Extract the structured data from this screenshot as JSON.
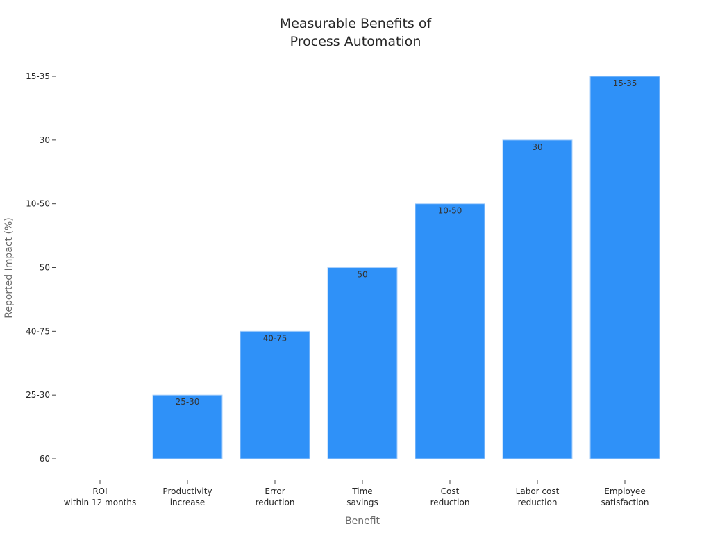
{
  "chart_data": {
    "type": "bar",
    "title": [
      "Measurable Benefits of",
      "Process Automation"
    ],
    "xlabel": "Benefit",
    "ylabel": "Reported Impact (%)",
    "y_axis_kind": "categorical",
    "y_ticks": [
      "60",
      "25-30",
      "40-75",
      "50",
      "10-50",
      "30",
      "15-35"
    ],
    "categories": [
      [
        "ROI",
        "within 12 months"
      ],
      [
        "Productivity",
        "increase"
      ],
      [
        "Error",
        "reduction"
      ],
      [
        "Time",
        "savings"
      ],
      [
        "Cost",
        "reduction"
      ],
      [
        "Labor cost",
        "reduction"
      ],
      [
        "Employee",
        "satisfaction"
      ]
    ],
    "values": [
      "60",
      "25-30",
      "40-75",
      "50",
      "10-50",
      "30",
      "15-35"
    ],
    "data_labels": [
      "",
      "25-30",
      "40-75",
      "50",
      "10-50",
      "30",
      "15-35"
    ],
    "bar_color": "#2f91f8",
    "grid": false,
    "legend": "none"
  }
}
